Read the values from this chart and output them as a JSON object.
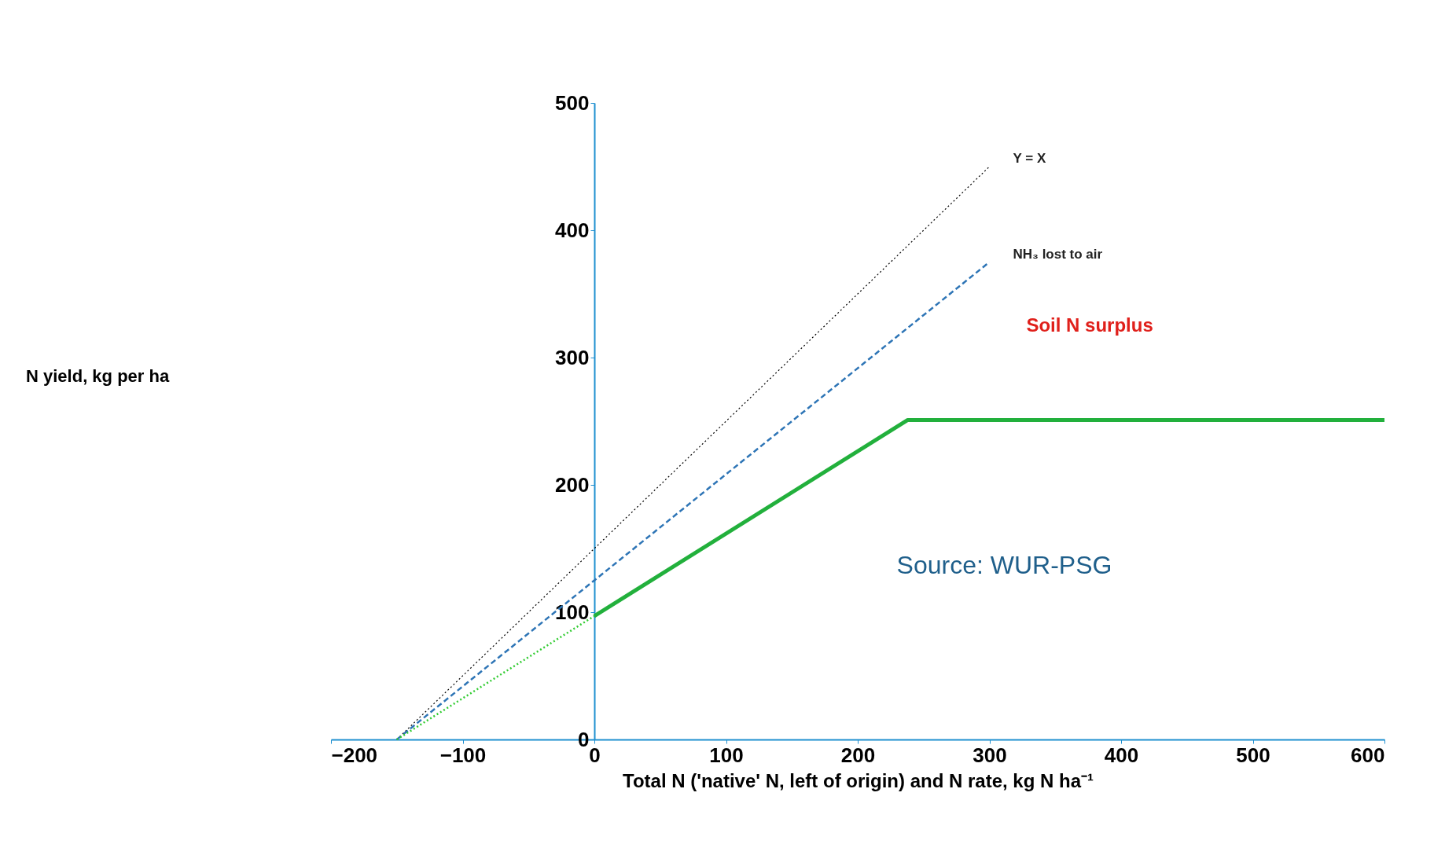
{
  "chart_data": {
    "type": "line",
    "xlabel": "Total N ('native' N, left of origin) and N rate, kg N ha⁻¹",
    "series": [
      {
        "name": "Y = X",
        "color": "#000000",
        "line_style": "dotted",
        "x": [
          -150,
          300
        ],
        "values": [
          0,
          450
        ]
      },
      {
        "name": "NH₃ lost to air",
        "color": "#2e75b6",
        "line_style": "dashed",
        "x": [
          -150,
          300
        ],
        "values": [
          0,
          375
        ]
      },
      {
        "color": "#33cc33",
        "line_style": "dotted",
        "x": [
          -150,
          0
        ],
        "values": [
          0,
          97
        ]
      },
      {
        "color": "#22b03c",
        "line_style": "solid",
        "x": [
          0,
          238,
          600
        ],
        "values": [
          97,
          251,
          251
        ]
      }
    ],
    "annotations": [
      "Soil N surplus",
      "Source: WUR-PSG",
      "N yield, kg per ha"
    ],
    "xlim": [
      -200,
      600
    ],
    "xticks": [
      -200,
      -100,
      0,
      100,
      200,
      300,
      400,
      500,
      600
    ],
    "ylim": [
      0,
      500
    ],
    "yticks": [
      0,
      100,
      200,
      300,
      400,
      500
    ],
    "grid": false,
    "marker": "none"
  }
}
